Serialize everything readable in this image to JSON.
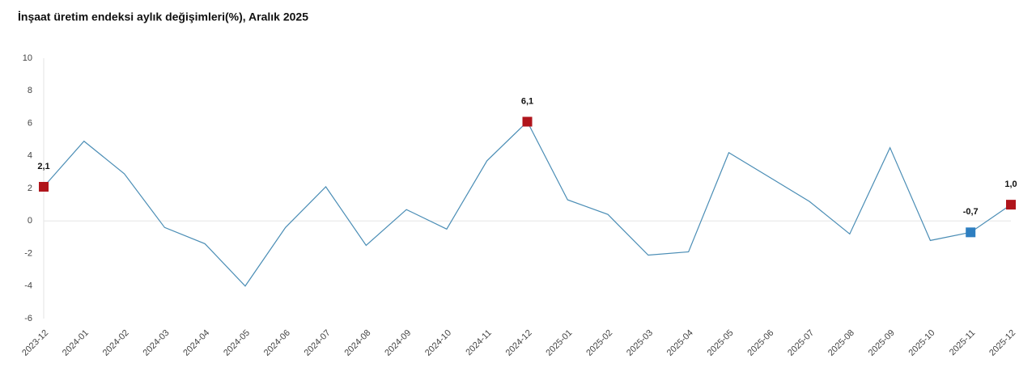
{
  "chart_data": {
    "type": "line",
    "title": "İnşaat üretim endeksi aylık değişimleri(%), Aralık 2025",
    "categories": [
      "2023-12",
      "2024-01",
      "2024-02",
      "2024-03",
      "2024-04",
      "2024-05",
      "2024-06",
      "2024-07",
      "2024-08",
      "2024-09",
      "2024-10",
      "2024-11",
      "2024-12",
      "2025-01",
      "2025-02",
      "2025-03",
      "2025-04",
      "2025-05",
      "2025-06",
      "2025-07",
      "2025-08",
      "2025-09",
      "2025-10",
      "2025-11",
      "2025-12"
    ],
    "values": [
      2.1,
      4.9,
      2.9,
      -0.4,
      -1.4,
      -4.0,
      -0.4,
      2.1,
      -1.5,
      0.7,
      -0.5,
      3.7,
      6.1,
      1.3,
      0.4,
      -2.1,
      -1.9,
      4.2,
      2.7,
      1.2,
      -0.8,
      4.5,
      -1.2,
      -0.7,
      1.0
    ],
    "value_labels": [
      "2,1",
      null,
      null,
      null,
      null,
      null,
      null,
      null,
      null,
      null,
      null,
      null,
      "6,1",
      null,
      null,
      null,
      null,
      null,
      null,
      null,
      null,
      null,
      null,
      "-0,7",
      "1,0"
    ],
    "marker_colors": [
      "#b0151c",
      null,
      null,
      null,
      null,
      null,
      null,
      null,
      null,
      null,
      null,
      null,
      "#b0151c",
      null,
      null,
      null,
      null,
      null,
      null,
      null,
      null,
      null,
      null,
      "#2e7fc1",
      "#b0151c"
    ],
    "color": "#4a8db5",
    "ylim": [
      -6,
      10
    ],
    "yticks": [
      -6,
      -4,
      -2,
      0,
      2,
      4,
      6,
      8,
      10
    ]
  }
}
